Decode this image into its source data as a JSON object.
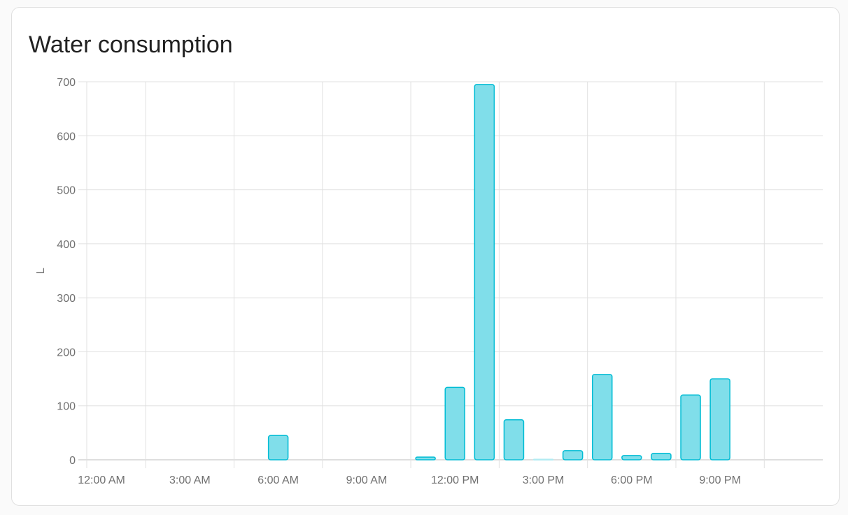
{
  "card": {
    "title": "Water consumption"
  },
  "chart_data": {
    "type": "bar",
    "title": "Water consumption",
    "ylabel": "L",
    "xlabel": "",
    "ylim": [
      0,
      700
    ],
    "yticks": [
      0,
      100,
      200,
      300,
      400,
      500,
      600,
      700
    ],
    "xtick_labels": [
      "12:00 AM",
      "3:00 AM",
      "6:00 AM",
      "9:00 AM",
      "12:00 PM",
      "3:00 PM",
      "6:00 PM",
      "9:00 PM"
    ],
    "categories": [
      "12 AM",
      "1 AM",
      "2 AM",
      "3 AM",
      "4 AM",
      "5 AM",
      "6 AM",
      "7 AM",
      "8 AM",
      "9 AM",
      "10 AM",
      "11 AM",
      "12 PM",
      "1 PM",
      "2 PM",
      "3 PM",
      "4 PM",
      "5 PM",
      "6 PM",
      "7 PM",
      "8 PM",
      "9 PM",
      "10 PM",
      "11 PM"
    ],
    "values": [
      0,
      0,
      0,
      0,
      0,
      0,
      45,
      0,
      0,
      0,
      0,
      5,
      134,
      695,
      74,
      1,
      17,
      158,
      8,
      12,
      120,
      150,
      0,
      0
    ],
    "grid": true,
    "colors": {
      "fill": "#80deea",
      "stroke": "#00bcd4",
      "grid": "#e0e0e0"
    }
  }
}
